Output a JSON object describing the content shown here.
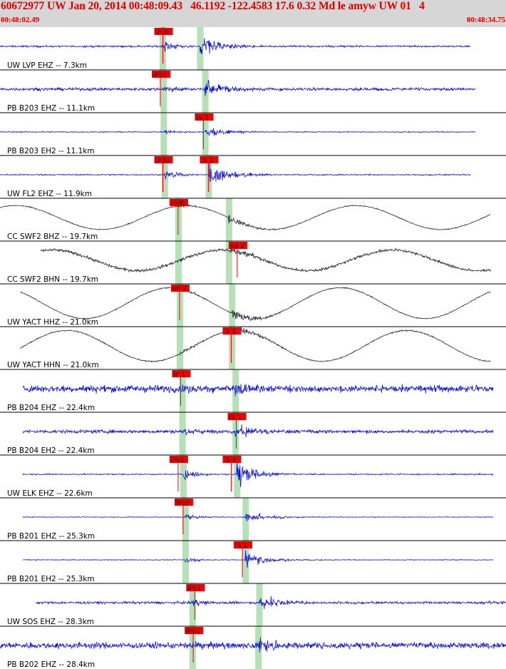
{
  "header": {
    "title": "60672977 UW Jan 20, 2014 00:48:09.43   46.1192 -122.4583 17.6 0.32 Md le amyw UW 01   4",
    "start_time": "00:48:02.49",
    "end_time": "00:48:34.75"
  },
  "colors": {
    "header_bg": "#d6d6d6",
    "header_text": "#e00000",
    "trace_blue": "#0000dd",
    "trace_dark": "#1a1a2e",
    "pick_box": "#ee0000",
    "arrival_band": "#b8e0b8",
    "separator": "#000000"
  },
  "chart_data": {
    "type": "line",
    "x_unit": "time",
    "traces": [
      {
        "label": "UW LVP EHZ -- 7.3km",
        "color": "blue",
        "kind": "quake",
        "p": 0.321,
        "s": 0.395,
        "noise": 0.07,
        "amp": 0.8,
        "x_start": 0.0,
        "x_end": 0.93,
        "picks": [
          {
            "text": "iPc0",
            "at": 0.305
          }
        ]
      },
      {
        "label": "PB B203 EHZ -- 11.1km",
        "color": "blue",
        "kind": "quake",
        "p": 0.323,
        "s": 0.405,
        "noise": 0.12,
        "amp": 0.65,
        "x_start": 0.0,
        "x_end": 0.94,
        "picks": [
          {
            "text": "iPc0",
            "at": 0.3
          }
        ]
      },
      {
        "label": "PB B203 EH2 -- 11.1km",
        "color": "blue",
        "kind": "quake",
        "p": 0.323,
        "s": 0.405,
        "noise": 0.04,
        "amp": 0.4,
        "x_start": 0.0,
        "x_end": 0.94,
        "picks": [
          {
            "text": "iS 0",
            "at": 0.385
          }
        ]
      },
      {
        "label": "UW FL2 EHZ -- 11.9km",
        "color": "blue",
        "kind": "quake",
        "p": 0.325,
        "s": 0.412,
        "noise": 0.05,
        "amp": 0.85,
        "x_start": 0.0,
        "x_end": 0.93,
        "picks": [
          {
            "text": "iPd0",
            "at": 0.305
          },
          {
            "text": "iS 1",
            "at": 0.395
          }
        ]
      },
      {
        "label": "CC SWF2 BHZ -- 19.7km",
        "color": "dark",
        "kind": "long",
        "p": 0.352,
        "s": 0.452,
        "noise": 0.04,
        "amp": 0.35,
        "x_start": 0.0,
        "x_end": 0.97,
        "picks": [
          {
            "text": "iPd0",
            "at": 0.335
          }
        ]
      },
      {
        "label": "CC SWF2 BHN -- 19.7km",
        "color": "dark",
        "kind": "long",
        "p": 0.352,
        "s": 0.452,
        "noise": 0.12,
        "amp": 0.3,
        "x_start": 0.08,
        "x_end": 0.97,
        "picks": [
          {
            "text": "eS 2",
            "at": 0.452
          }
        ]
      },
      {
        "label": "UW YACT HHZ -- 21.0km",
        "color": "dark",
        "kind": "long",
        "p": 0.355,
        "s": 0.458,
        "noise": 0.04,
        "amp": 0.45,
        "x_start": 0.04,
        "x_end": 0.97,
        "picks": [
          {
            "text": "eP 2",
            "at": 0.338
          }
        ]
      },
      {
        "label": "UW YACT HHN -- 21.0km",
        "color": "dark",
        "kind": "long",
        "p": 0.355,
        "s": 0.458,
        "noise": 0.05,
        "amp": 0.45,
        "x_start": 0.04,
        "x_end": 0.97,
        "picks": [
          {
            "text": "iS 1",
            "at": 0.44
          }
        ]
      },
      {
        "label": "PB B204 EHZ -- 22.4km",
        "color": "blue",
        "kind": "quake",
        "p": 0.36,
        "s": 0.465,
        "noise": 0.28,
        "amp": 0.5,
        "x_start": 0.045,
        "x_end": 0.975,
        "picks": [
          {
            "text": "iP 1",
            "at": 0.34
          }
        ]
      },
      {
        "label": "PB B204 EH2 -- 22.4km",
        "color": "blue",
        "kind": "quake",
        "p": 0.36,
        "s": 0.465,
        "noise": 0.14,
        "amp": 0.55,
        "x_start": 0.045,
        "x_end": 0.975,
        "picks": [
          {
            "text": "iS 1",
            "at": 0.45
          }
        ]
      },
      {
        "label": "UW ELK EHZ -- 22.6km",
        "color": "blue",
        "kind": "quake",
        "p": 0.362,
        "s": 0.468,
        "noise": 0.05,
        "amp": 0.85,
        "x_start": 0.045,
        "x_end": 0.975,
        "picks": [
          {
            "text": "iPc0",
            "at": 0.335
          },
          {
            "text": "iS 1",
            "at": 0.44
          }
        ]
      },
      {
        "label": "PB B201 EHZ -- 25.3km",
        "color": "blue",
        "kind": "quake",
        "p": 0.366,
        "s": 0.485,
        "noise": 0.03,
        "amp": 0.5,
        "x_start": 0.045,
        "x_end": 0.975,
        "picks": [
          {
            "text": "iPc0",
            "at": 0.345
          }
        ]
      },
      {
        "label": "PB B201 EH2 -- 25.3km",
        "color": "blue",
        "kind": "quake",
        "p": 0.366,
        "s": 0.485,
        "noise": 0.03,
        "amp": 0.55,
        "x_start": 0.045,
        "x_end": 0.975,
        "picks": [
          {
            "text": "iS 1",
            "at": 0.462
          }
        ]
      },
      {
        "label": "UW SOS EHZ -- 28.3km",
        "color": "blue",
        "kind": "quake",
        "p": 0.38,
        "s": 0.512,
        "noise": 0.1,
        "amp": 0.6,
        "x_start": 0.07,
        "x_end": 1.0,
        "picks": [
          {
            "text": "iPc1",
            "at": 0.368
          }
        ]
      },
      {
        "label": "PB B202 EHZ -- 28.4km",
        "color": "blue",
        "kind": "quake",
        "p": 0.38,
        "s": 0.51,
        "noise": 0.24,
        "amp": 0.55,
        "x_start": 0.0,
        "x_end": 1.0,
        "picks": [
          {
            "text": "iPd1",
            "at": 0.365
          }
        ]
      }
    ]
  }
}
